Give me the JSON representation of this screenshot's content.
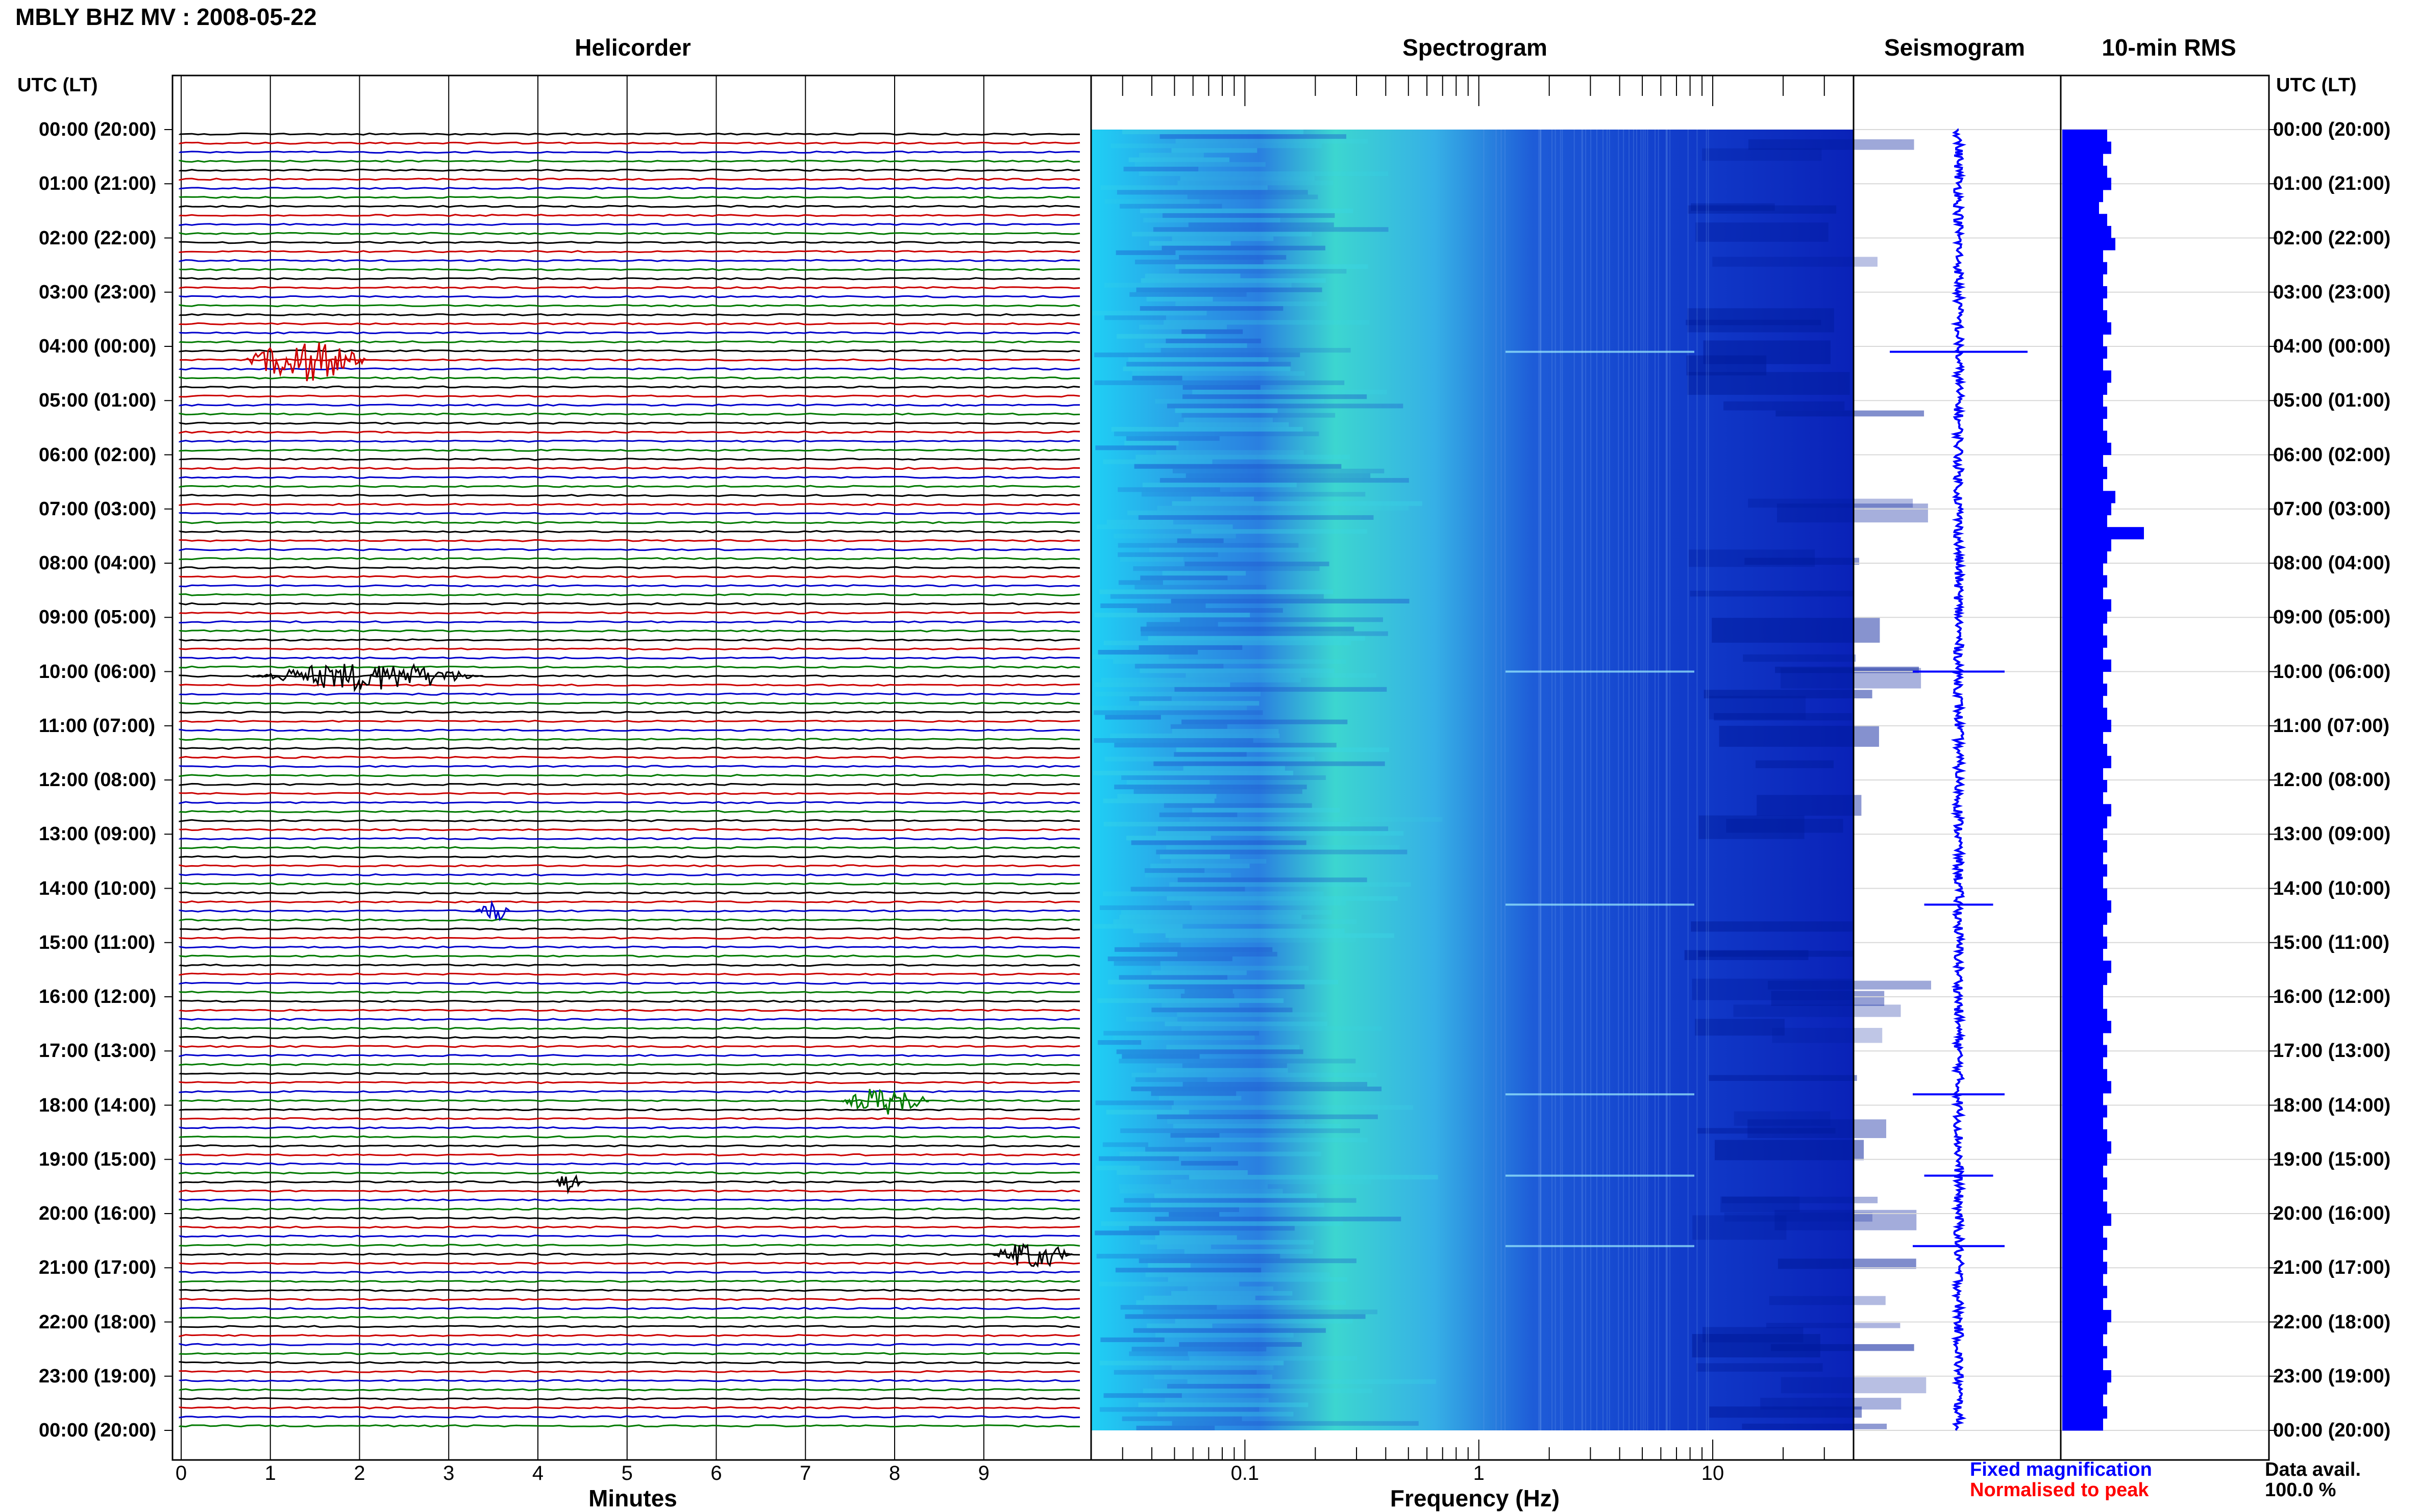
{
  "header": {
    "title": "MBLY BHZ MV : 2008-05-22"
  },
  "panels": {
    "helicorder": "Helicorder",
    "spectrogram": "Spectrogram",
    "seismogram": "Seismogram",
    "rms": "10-min RMS"
  },
  "axis": {
    "utc_label_left": "UTC (LT)",
    "utc_label_right": "UTC (LT)",
    "minutes_label": "Minutes",
    "frequency_label": "Frequency (Hz)",
    "minute_ticks": [
      "0",
      "1",
      "2",
      "3",
      "4",
      "5",
      "6",
      "7",
      "8",
      "9"
    ],
    "frequency_ticks": [
      "0.1",
      "1",
      "10"
    ],
    "hour_labels": [
      "00:00 (20:00)",
      "01:00 (21:00)",
      "02:00 (22:00)",
      "03:00 (23:00)",
      "04:00 (00:00)",
      "05:00 (01:00)",
      "06:00 (02:00)",
      "07:00 (03:00)",
      "08:00 (04:00)",
      "09:00 (05:00)",
      "10:00 (06:00)",
      "11:00 (07:00)",
      "12:00 (08:00)",
      "13:00 (09:00)",
      "14:00 (10:00)",
      "15:00 (11:00)",
      "16:00 (12:00)",
      "17:00 (13:00)",
      "18:00 (14:00)",
      "19:00 (15:00)",
      "20:00 (16:00)",
      "21:00 (17:00)",
      "22:00 (18:00)",
      "23:00 (19:00)",
      "00:00 (20:00)"
    ]
  },
  "legend": {
    "fixed": "Fixed magnification",
    "normalised": "Normalised to peak",
    "data_avail_label": "Data avail.",
    "data_avail_value": "100.0 %"
  },
  "colors": {
    "trace_cycle": [
      "#000000",
      "#cc0000",
      "#0000cc",
      "#007a00"
    ],
    "fixed": "#0000ff",
    "normalised": "#ff0000",
    "rms_fill": "#0000ff",
    "spectrogram_low": "#00c8ff",
    "spectrogram_high": "#000080"
  },
  "events": [
    {
      "hour": 4.1,
      "minute": 0.7,
      "span": 1.4,
      "amp": 3.0
    },
    {
      "hour": 10.0,
      "minute": 0.8,
      "span": 2.6,
      "amp": 2.0
    },
    {
      "hour": 14.3,
      "minute": 3.3,
      "span": 0.4,
      "amp": 1.5
    },
    {
      "hour": 17.8,
      "minute": 7.4,
      "span": 1.0,
      "amp": 2.0
    },
    {
      "hour": 19.3,
      "minute": 4.2,
      "span": 0.3,
      "amp": 1.5
    },
    {
      "hour": 20.6,
      "minute": 9.1,
      "span": 0.9,
      "amp": 2.0
    }
  ],
  "rms_values": [
    0.55,
    0.6,
    0.5,
    0.55,
    0.6,
    0.5,
    0.45,
    0.55,
    0.6,
    0.65,
    0.5,
    0.55,
    0.5,
    0.55,
    0.5,
    0.55,
    0.6,
    0.5,
    0.55,
    0.5,
    0.6,
    0.55,
    0.5,
    0.55,
    0.5,
    0.55,
    0.6,
    0.5,
    0.55,
    0.5,
    0.65,
    0.6,
    0.55,
    1.0,
    0.6,
    0.55,
    0.5,
    0.55,
    0.5,
    0.6,
    0.55,
    0.5,
    0.55,
    0.5,
    0.6,
    0.5,
    0.55,
    0.5,
    0.55,
    0.6,
    0.5,
    0.55,
    0.6,
    0.5,
    0.55,
    0.5,
    0.6,
    0.55,
    0.5,
    0.55,
    0.5,
    0.55,
    0.5,
    0.55,
    0.6,
    0.55,
    0.5,
    0.55,
    0.5,
    0.6,
    0.55,
    0.5,
    0.5,
    0.55,
    0.6,
    0.5,
    0.55,
    0.5,
    0.55,
    0.6,
    0.5,
    0.55,
    0.5,
    0.55,
    0.6,
    0.55,
    0.5,
    0.55,
    0.5,
    0.55,
    0.6,
    0.5,
    0.55,
    0.5,
    0.55,
    0.5,
    0.55,
    0.5,
    0.6,
    0.55,
    0.5,
    0.55,
    0.5,
    0.6,
    0.55,
    0.5,
    0.55,
    0.5
  ]
}
